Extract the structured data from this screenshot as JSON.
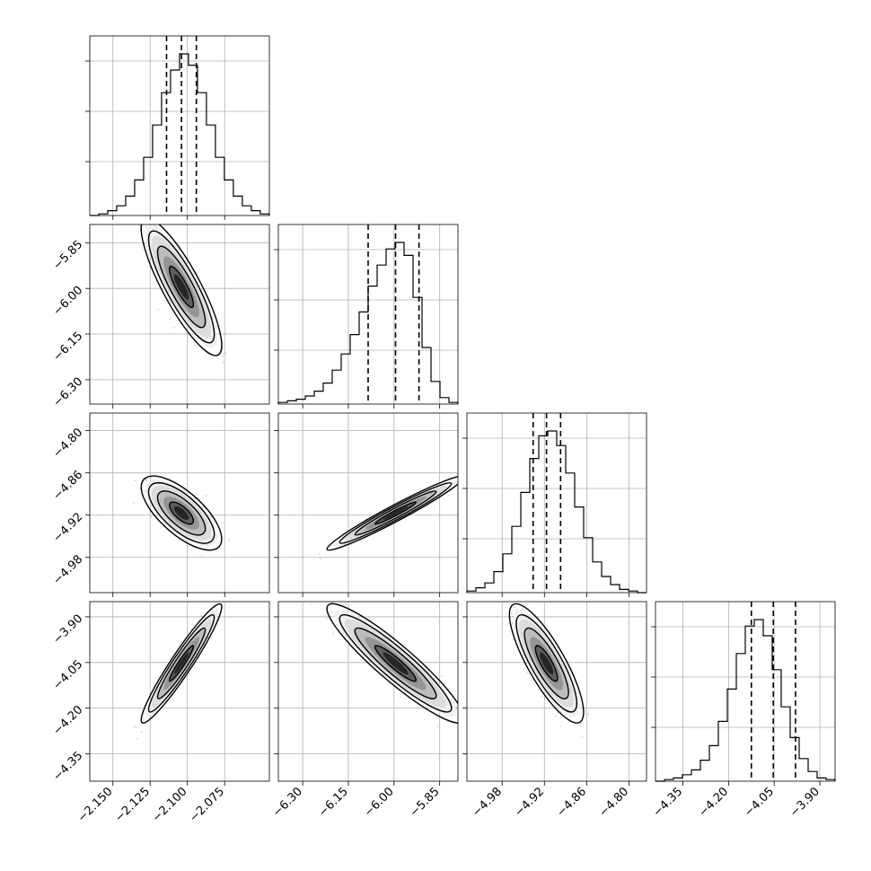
{
  "chart_data": {
    "type": "corner",
    "grid": true,
    "params": [
      {
        "mean": -2.104,
        "low": -2.114,
        "high": -2.094,
        "ticks": [
          -2.15,
          -2.125,
          -2.1,
          -2.075
        ],
        "tick_labels": [
          "−2.150",
          "−2.125",
          "−2.100",
          "−2.075"
        ],
        "range": [
          -2.1655,
          -2.045
        ]
      },
      {
        "mean": -5.995,
        "low": -6.085,
        "high": -5.918,
        "ticks": [
          -6.3,
          -6.15,
          -6.0,
          -5.85
        ],
        "tick_labels": [
          "−6.30",
          "−6.15",
          "−6.00",
          "−5.85"
        ],
        "range": [
          -6.38,
          -5.79
        ]
      },
      {
        "mean": -4.917,
        "low": -4.936,
        "high": -4.897,
        "ticks": [
          -4.98,
          -4.92,
          -4.86,
          -4.8
        ],
        "tick_labels": [
          "−4.98",
          "−4.92",
          "−4.86",
          "−4.80"
        ],
        "range": [
          -5.03,
          -4.775
        ]
      },
      {
        "mean": -4.053,
        "low": -4.125,
        "high": -3.98,
        "ticks": [
          -4.35,
          -4.2,
          -4.05,
          -3.9
        ],
        "tick_labels": [
          "−4.35",
          "−4.20",
          "−4.05",
          "−3.90"
        ],
        "range": [
          -4.44,
          -3.85
        ]
      }
    ],
    "histograms": [
      {
        "param": 0,
        "bin_start": -2.1655,
        "bin_width": 0.00602,
        "counts": [
          0,
          1,
          3,
          6,
          12,
          22,
          36,
          56,
          76,
          90,
          100,
          93,
          76,
          56,
          36,
          22,
          12,
          6,
          3,
          1
        ]
      },
      {
        "param": 1,
        "bin_start": -6.38,
        "bin_width": 0.0295,
        "counts": [
          1,
          2,
          3,
          5,
          8,
          13,
          21,
          31,
          43,
          57,
          73,
          86,
          96,
          100,
          92,
          66,
          35,
          14,
          4,
          1
        ]
      },
      {
        "param": 2,
        "bin_start": -5.03,
        "bin_width": 0.01275,
        "counts": [
          1,
          3,
          6,
          13,
          24,
          41,
          62,
          83,
          97,
          100,
          91,
          74,
          53,
          34,
          19,
          10,
          5,
          2,
          1,
          0
        ]
      },
      {
        "param": 3,
        "bin_start": -4.44,
        "bin_width": 0.0295,
        "counts": [
          0,
          1,
          2,
          4,
          7,
          13,
          22,
          37,
          57,
          79,
          96,
          100,
          90,
          69,
          46,
          27,
          14,
          6,
          2,
          1
        ]
      }
    ],
    "pairs": [
      {
        "x": 0,
        "y": 1,
        "correlation": -0.85
      },
      {
        "x": 0,
        "y": 2,
        "correlation": -0.7
      },
      {
        "x": 1,
        "y": 2,
        "correlation": 0.97
      },
      {
        "x": 0,
        "y": 3,
        "correlation": 0.95
      },
      {
        "x": 1,
        "y": 3,
        "correlation": -0.92
      },
      {
        "x": 2,
        "y": 3,
        "correlation": -0.82
      }
    ]
  }
}
